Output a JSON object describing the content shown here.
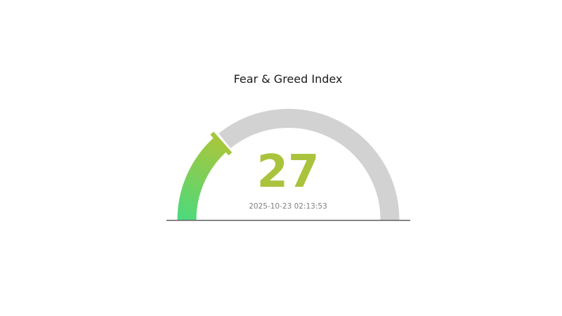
{
  "page": {
    "background": "#ffffff"
  },
  "chart_data": {
    "type": "gauge",
    "title": "Fear & Greed Index",
    "value": 27,
    "min": 0,
    "max": 100,
    "arc_span_degrees": 180,
    "timestamp": "2025-10-23 02:13:53",
    "legend": "none",
    "colors": {
      "progress_start": "#4ed97b",
      "progress_end": "#a5c73e",
      "track": "#d2d2d2",
      "value_text": "#aac33d",
      "timestamp_text": "#7f7f7f",
      "title_text": "#1a1a1a",
      "baseline": "#5e5e5e"
    }
  }
}
